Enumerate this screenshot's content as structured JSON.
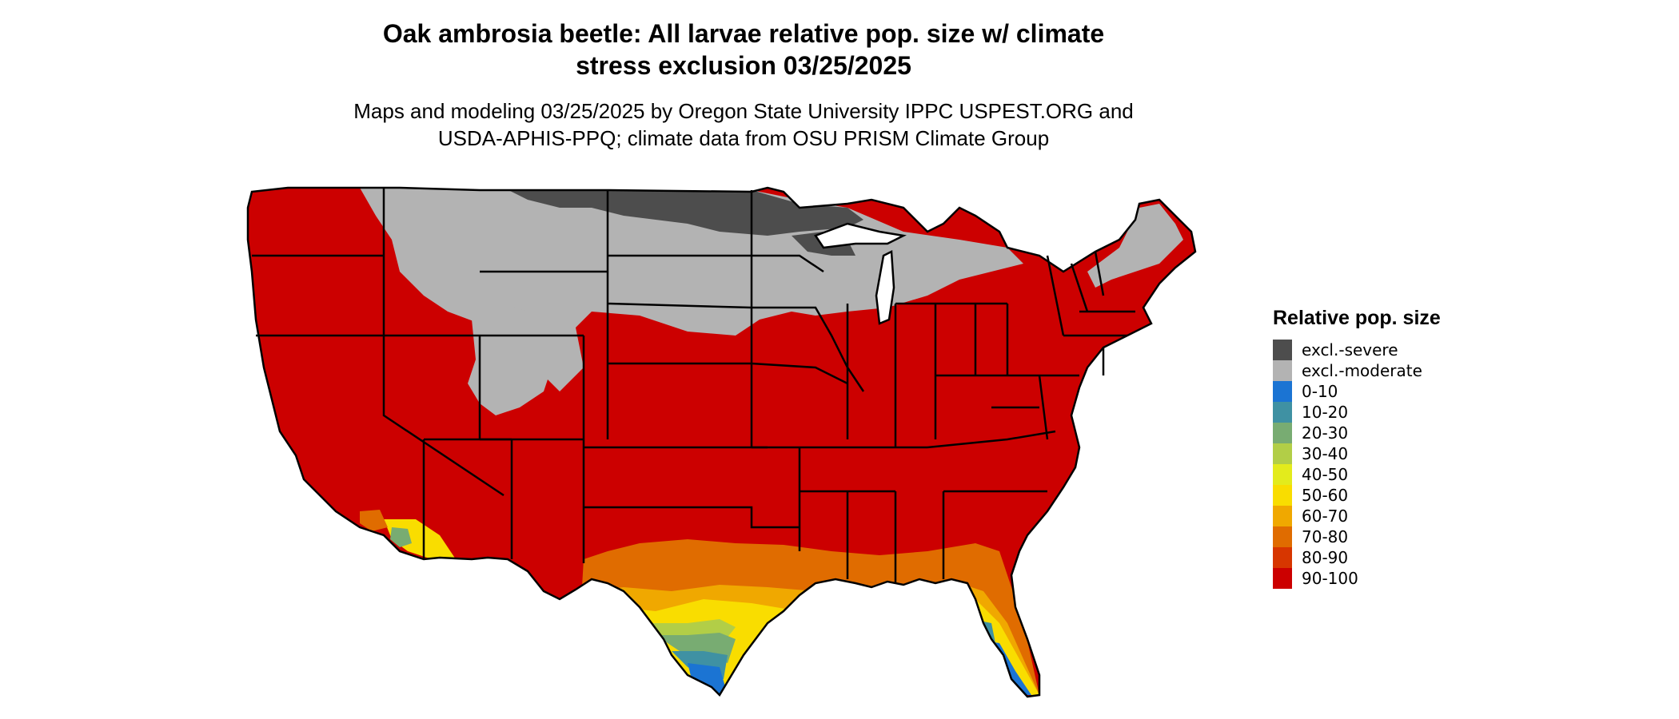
{
  "map": {
    "title_line1": "Oak ambrosia beetle: All larvae relative pop. size w/ climate",
    "title_line2": "stress exclusion 03/25/2025",
    "subtitle_line1": "Maps and modeling 03/25/2025 by Oregon State University IPPC USPEST.ORG and",
    "subtitle_line2": "USDA-APHIS-PPQ; climate data from OSU PRISM Climate Group",
    "region": "Contiguous United States"
  },
  "legend": {
    "title": "Relative pop. size",
    "items": [
      {
        "label": "excl.-severe",
        "color": "#4d4d4d"
      },
      {
        "label": "excl.-moderate",
        "color": "#b3b3b3"
      },
      {
        "label": "0-10",
        "color": "#1b74d3"
      },
      {
        "label": "10-20",
        "color": "#3f91a3"
      },
      {
        "label": "20-30",
        "color": "#78ac72"
      },
      {
        "label": "30-40",
        "color": "#b2ce47"
      },
      {
        "label": "40-50",
        "color": "#e3eb1c"
      },
      {
        "label": "50-60",
        "color": "#f9dd00"
      },
      {
        "label": "60-70",
        "color": "#f0a800"
      },
      {
        "label": "70-80",
        "color": "#e06c00"
      },
      {
        "label": "80-90",
        "color": "#d73600"
      },
      {
        "label": "90-100",
        "color": "#cc0000"
      }
    ]
  }
}
